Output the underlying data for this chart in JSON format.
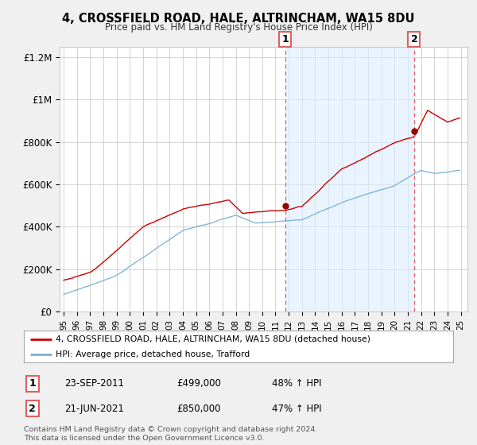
{
  "title": "4, CROSSFIELD ROAD, HALE, ALTRINCHAM, WA15 8DU",
  "subtitle": "Price paid vs. HM Land Registry's House Price Index (HPI)",
  "legend_line1": "4, CROSSFIELD ROAD, HALE, ALTRINCHAM, WA15 8DU (detached house)",
  "legend_line2": "HPI: Average price, detached house, Trafford",
  "footnote": "Contains HM Land Registry data © Crown copyright and database right 2024.\nThis data is licensed under the Open Government Licence v3.0.",
  "sale1_label": "1",
  "sale1_date": "23-SEP-2011",
  "sale1_price": "£499,000",
  "sale1_pct": "48% ↑ HPI",
  "sale1_year": 2011.73,
  "sale1_value": 499000,
  "sale2_label": "2",
  "sale2_date": "21-JUN-2021",
  "sale2_price": "£850,000",
  "sale2_pct": "47% ↑ HPI",
  "sale2_year": 2021.47,
  "sale2_value": 850000,
  "hpi_color": "#7aafd4",
  "price_color": "#cc0000",
  "marker_color": "#990000",
  "vline_color": "#e06060",
  "shade_color": "#ddeeff",
  "bg_color": "#f0f0f0",
  "plot_bg_color": "#ffffff",
  "grid_color": "#cccccc",
  "ylim": [
    0,
    1250000
  ],
  "yticks": [
    0,
    200000,
    400000,
    600000,
    800000,
    1000000,
    1200000
  ],
  "ytick_labels": [
    "£0",
    "£200K",
    "£400K",
    "£600K",
    "£800K",
    "£1M",
    "£1.2M"
  ],
  "xstart": 1995,
  "xend": 2025
}
